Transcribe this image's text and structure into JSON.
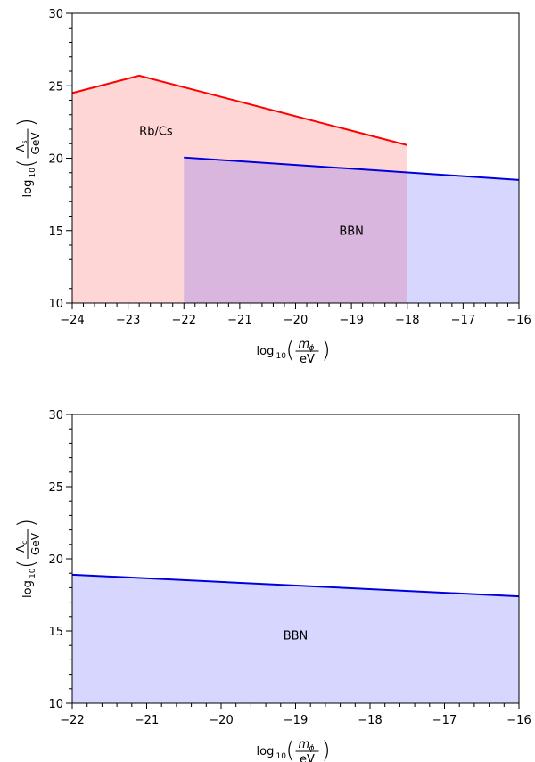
{
  "chart_data": [
    {
      "type": "area",
      "title": "",
      "xlabel": {
        "base": "log",
        "sub": "10",
        "num": "m",
        "num_sub": "ϕ",
        "den": "eV"
      },
      "ylabel": {
        "base": "log",
        "sub": "10",
        "num": "Λ",
        "num_sub": "s",
        "den": "GeV"
      },
      "xlim": [
        -24,
        -16
      ],
      "ylim": [
        10,
        30
      ],
      "xticks": [
        "−24",
        "−23",
        "−22",
        "−21",
        "−20",
        "−19",
        "−18",
        "−17",
        "−16"
      ],
      "yticks": [
        "10",
        "15",
        "20",
        "25",
        "30"
      ],
      "series": [
        {
          "name": "Rb/Cs",
          "line_color": "#ff0000",
          "fill_color": "#ffd6d6",
          "points": [
            [
              -24,
              24.5
            ],
            [
              -22.8,
              25.7
            ],
            [
              -18,
              20.9
            ]
          ]
        },
        {
          "name": "BBN",
          "line_color": "#0000dd",
          "fill_color": "#d6d6ff",
          "points": [
            [
              -22,
              20.05
            ],
            [
              -16,
              18.5
            ]
          ]
        }
      ],
      "overlap_color": "#d9b6dd",
      "label_positions": {
        "Rb/Cs": [
          -22.5,
          21.6
        ],
        "BBN": [
          -19.0,
          14.7
        ]
      }
    },
    {
      "type": "area",
      "title": "",
      "xlabel": {
        "base": "log",
        "sub": "10",
        "num": "m",
        "num_sub": "ϕ",
        "den": "eV"
      },
      "ylabel": {
        "base": "log",
        "sub": "10",
        "num": "Λ",
        "num_sub": "c",
        "den": "GeV"
      },
      "xlim": [
        -22,
        -16
      ],
      "ylim": [
        10,
        30
      ],
      "xticks": [
        "−22",
        "−21",
        "−20",
        "−19",
        "−18",
        "−17",
        "−16"
      ],
      "yticks": [
        "10",
        "15",
        "20",
        "25",
        "30"
      ],
      "series": [
        {
          "name": "BBN",
          "line_color": "#0000dd",
          "fill_color": "#d6d6ff",
          "points": [
            [
              -22,
              18.9
            ],
            [
              -16,
              17.4
            ]
          ]
        }
      ],
      "label_positions": {
        "BBN": [
          -19.0,
          14.4
        ]
      }
    }
  ]
}
